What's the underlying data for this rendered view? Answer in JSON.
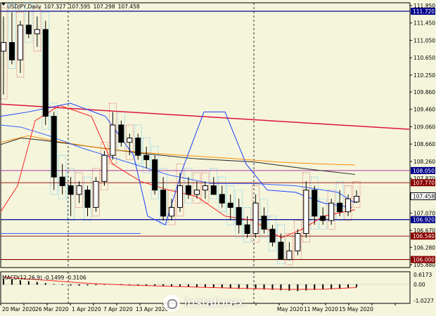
{
  "chart_data": {
    "type": "candlestick",
    "symbol": "USDJPY,Daily",
    "ohlc": [
      "107.327",
      "107.595",
      "107.298",
      "107.458"
    ],
    "y_ticks": [
      "111.850",
      "111.450",
      "111.050",
      "110.650",
      "110.250",
      "109.860",
      "109.460",
      "109.060",
      "108.660",
      "108.260",
      "107.870",
      "107.470",
      "107.070",
      "106.670",
      "106.280",
      "105.880"
    ],
    "y_range": [
      105.88,
      111.85
    ],
    "price_tags": [
      {
        "value": 111.72,
        "label": "111.720",
        "color": "#00008b"
      },
      {
        "value": 108.05,
        "label": "108.050",
        "color": "#00008b"
      },
      {
        "value": 107.77,
        "label": "107.770",
        "color": "#8b0000"
      },
      {
        "value": 107.458,
        "label": "107.458",
        "color": "#000000",
        "style": "outline"
      },
      {
        "value": 106.92,
        "label": "106.920",
        "color": "#00008b"
      },
      {
        "value": 106.54,
        "label": "106.540",
        "color": "#8b0000"
      },
      {
        "value": 106.0,
        "label": "106.000",
        "color": "#8b0000"
      }
    ],
    "x_labels": [
      "20 Mar 2020",
      "26 Mar 2020",
      "1 Apr 2020",
      "7 Apr 2020",
      "13 Apr 2020",
      "May 2020",
      "11 May 2020",
      "15 May 2020"
    ],
    "candles": [
      {
        "o": 110.8,
        "h": 111.6,
        "l": 109.8,
        "c": 111.0
      },
      {
        "o": 111.0,
        "h": 111.7,
        "l": 110.5,
        "c": 110.6
      },
      {
        "o": 110.6,
        "h": 111.5,
        "l": 110.3,
        "c": 111.4
      },
      {
        "o": 111.4,
        "h": 111.72,
        "l": 111.1,
        "c": 111.2
      },
      {
        "o": 111.2,
        "h": 111.6,
        "l": 110.9,
        "c": 111.3
      },
      {
        "o": 111.3,
        "h": 111.5,
        "l": 109.1,
        "c": 109.3
      },
      {
        "o": 109.3,
        "h": 109.4,
        "l": 107.6,
        "c": 107.9
      },
      {
        "o": 107.9,
        "h": 108.2,
        "l": 107.5,
        "c": 107.7
      },
      {
        "o": 107.7,
        "h": 107.9,
        "l": 107.0,
        "c": 107.5
      },
      {
        "o": 107.5,
        "h": 107.8,
        "l": 107.3,
        "c": 107.7
      },
      {
        "o": 107.6,
        "h": 107.7,
        "l": 107.0,
        "c": 107.2
      },
      {
        "o": 107.2,
        "h": 107.9,
        "l": 107.1,
        "c": 107.8
      },
      {
        "o": 107.8,
        "h": 108.5,
        "l": 107.7,
        "c": 108.4
      },
      {
        "o": 108.4,
        "h": 109.4,
        "l": 108.3,
        "c": 109.1
      },
      {
        "o": 109.1,
        "h": 109.2,
        "l": 108.6,
        "c": 108.7
      },
      {
        "o": 108.7,
        "h": 108.9,
        "l": 108.4,
        "c": 108.8
      },
      {
        "o": 108.8,
        "h": 108.9,
        "l": 108.3,
        "c": 108.4
      },
      {
        "o": 108.4,
        "h": 108.6,
        "l": 108.1,
        "c": 108.3
      },
      {
        "o": 108.3,
        "h": 108.4,
        "l": 107.5,
        "c": 107.6
      },
      {
        "o": 107.6,
        "h": 107.9,
        "l": 106.9,
        "c": 107.0
      },
      {
        "o": 107.0,
        "h": 107.4,
        "l": 106.9,
        "c": 107.2
      },
      {
        "o": 107.2,
        "h": 108.0,
        "l": 107.1,
        "c": 107.7
      },
      {
        "o": 107.7,
        "h": 107.9,
        "l": 107.4,
        "c": 107.5
      },
      {
        "o": 107.5,
        "h": 107.8,
        "l": 107.4,
        "c": 107.6
      },
      {
        "o": 107.6,
        "h": 107.8,
        "l": 107.4,
        "c": 107.7
      },
      {
        "o": 107.7,
        "h": 107.9,
        "l": 107.5,
        "c": 107.5
      },
      {
        "o": 107.5,
        "h": 107.7,
        "l": 107.2,
        "c": 107.3
      },
      {
        "o": 107.3,
        "h": 107.5,
        "l": 106.9,
        "c": 107.2
      },
      {
        "o": 107.2,
        "h": 107.4,
        "l": 106.6,
        "c": 106.8
      },
      {
        "o": 106.8,
        "h": 107.0,
        "l": 106.5,
        "c": 106.6
      },
      {
        "o": 106.6,
        "h": 107.5,
        "l": 106.5,
        "c": 107.3
      },
      {
        "o": 107.0,
        "h": 107.2,
        "l": 106.6,
        "c": 106.7
      },
      {
        "o": 106.7,
        "h": 106.8,
        "l": 106.3,
        "c": 106.4
      },
      {
        "o": 106.4,
        "h": 106.6,
        "l": 106.0,
        "c": 106.0
      },
      {
        "o": 106.0,
        "h": 106.4,
        "l": 105.98,
        "c": 106.2
      },
      {
        "o": 106.2,
        "h": 106.7,
        "l": 106.1,
        "c": 106.6
      },
      {
        "o": 106.6,
        "h": 107.8,
        "l": 106.5,
        "c": 107.6
      },
      {
        "o": 107.6,
        "h": 107.7,
        "l": 106.8,
        "c": 107.0
      },
      {
        "o": 107.0,
        "h": 107.2,
        "l": 106.8,
        "c": 106.9
      },
      {
        "o": 106.9,
        "h": 107.4,
        "l": 106.8,
        "c": 107.3
      },
      {
        "o": 107.3,
        "h": 107.6,
        "l": 107.0,
        "c": 107.1
      },
      {
        "o": 107.1,
        "h": 107.5,
        "l": 107.0,
        "c": 107.4
      },
      {
        "o": 107.327,
        "h": 107.595,
        "l": 107.298,
        "c": 107.458
      }
    ],
    "macd": {
      "label": "MACD(12,26,9) -0.1499 -0.3106",
      "y_ticks": [
        "0.6173",
        "0.00",
        "-1.0227"
      ],
      "y_range": [
        -1.0227,
        0.6173
      ]
    }
  },
  "watermark": "instaforex"
}
